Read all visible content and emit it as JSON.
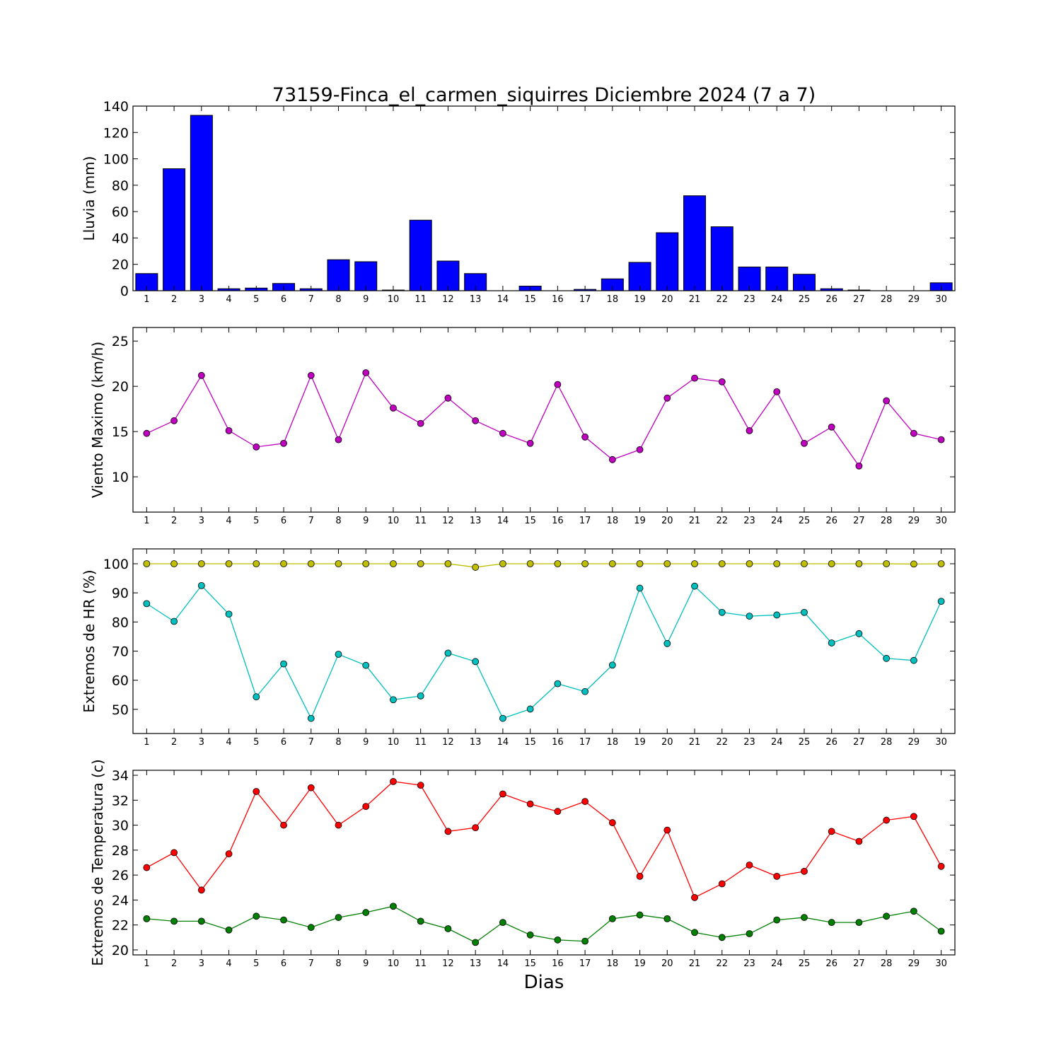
{
  "title": "73159-Finca_el_carmen_siquirres Diciembre 2024  (7 a 7)",
  "xlabel": "Dias",
  "chart_data": [
    {
      "type": "bar",
      "ylabel": "Lluvia (mm)",
      "ylim": [
        0,
        140
      ],
      "yticks": [
        0,
        20,
        40,
        60,
        80,
        100,
        120,
        140
      ],
      "categories": [
        1,
        2,
        3,
        4,
        5,
        6,
        7,
        8,
        9,
        10,
        11,
        12,
        13,
        14,
        15,
        16,
        17,
        18,
        19,
        20,
        21,
        22,
        23,
        24,
        25,
        26,
        27,
        28,
        29,
        30
      ],
      "series": [
        {
          "color": "#0000ff",
          "values": [
            13.0,
            92.5,
            133.0,
            1.5,
            2.0,
            5.5,
            1.5,
            23.5,
            22.0,
            0.5,
            53.5,
            22.5,
            13.0,
            0.0,
            3.5,
            0.0,
            1.0,
            9.0,
            21.5,
            44.0,
            72.0,
            48.5,
            18.0,
            18.0,
            12.5,
            1.5,
            0.5,
            0.0,
            0.0,
            6.0
          ]
        }
      ]
    },
    {
      "type": "line",
      "ylabel": "Viento Maximo (km/h)",
      "ylim": [
        6.1,
        26.5
      ],
      "yticks": [
        10,
        15,
        20,
        25
      ],
      "categories": [
        1,
        2,
        3,
        4,
        5,
        6,
        7,
        8,
        9,
        10,
        11,
        12,
        13,
        14,
        15,
        16,
        17,
        18,
        19,
        20,
        21,
        22,
        23,
        24,
        25,
        26,
        27,
        28,
        29,
        30
      ],
      "series": [
        {
          "color": "#bf00bf",
          "values": [
            14.8,
            16.2,
            21.2,
            15.1,
            13.3,
            13.7,
            21.2,
            14.1,
            21.5,
            17.6,
            15.9,
            18.7,
            16.2,
            14.8,
            13.7,
            20.2,
            14.4,
            11.9,
            13.0,
            18.7,
            20.9,
            20.5,
            15.1,
            19.4,
            13.7,
            15.5,
            11.2,
            18.4,
            14.8,
            14.1
          ]
        }
      ]
    },
    {
      "type": "line",
      "ylabel": "Extremos de HR (%)",
      "ylim": [
        41.7,
        105.1
      ],
      "yticks": [
        50,
        60,
        70,
        80,
        90,
        100
      ],
      "categories": [
        1,
        2,
        3,
        4,
        5,
        6,
        7,
        8,
        9,
        10,
        11,
        12,
        13,
        14,
        15,
        16,
        17,
        18,
        19,
        20,
        21,
        22,
        23,
        24,
        25,
        26,
        27,
        28,
        29,
        30
      ],
      "series": [
        {
          "color": "#bfbf00",
          "values": [
            100,
            100,
            100,
            100,
            100,
            100,
            100,
            100,
            100,
            100,
            100,
            100,
            98.8,
            100,
            100,
            100,
            100,
            100,
            100,
            100,
            100,
            100,
            100,
            100,
            100,
            100,
            100,
            100,
            99.9,
            100
          ]
        },
        {
          "color": "#00bfbf",
          "values": [
            86.3,
            80.2,
            92.5,
            82.7,
            54.3,
            65.6,
            46.9,
            68.9,
            65.1,
            53.3,
            54.6,
            69.3,
            66.4,
            46.9,
            50.1,
            58.8,
            56.1,
            65.2,
            91.6,
            72.6,
            92.3,
            83.3,
            82.0,
            82.4,
            83.3,
            72.8,
            76.0,
            67.5,
            66.8,
            87.1
          ]
        }
      ]
    },
    {
      "type": "line",
      "ylabel": "Extremos de Temperatura (c)",
      "ylim": [
        19.6,
        34.4
      ],
      "yticks": [
        20,
        22,
        24,
        26,
        28,
        30,
        32,
        34
      ],
      "categories": [
        1,
        2,
        3,
        4,
        5,
        6,
        7,
        8,
        9,
        10,
        11,
        12,
        13,
        14,
        15,
        16,
        17,
        18,
        19,
        20,
        21,
        22,
        23,
        24,
        25,
        26,
        27,
        28,
        29,
        30
      ],
      "series": [
        {
          "color": "#ff0000",
          "values": [
            26.6,
            27.8,
            24.8,
            27.7,
            32.7,
            30.0,
            33.0,
            30.0,
            31.5,
            33.5,
            33.2,
            29.5,
            29.8,
            32.5,
            31.7,
            31.1,
            31.9,
            30.2,
            25.9,
            29.6,
            24.2,
            25.3,
            26.8,
            25.9,
            26.3,
            29.5,
            28.7,
            30.4,
            30.7,
            26.7
          ]
        },
        {
          "color": "#008000",
          "values": [
            22.5,
            22.3,
            22.3,
            21.6,
            22.7,
            22.4,
            21.8,
            22.6,
            23.0,
            23.5,
            22.3,
            21.7,
            20.6,
            22.2,
            21.2,
            20.8,
            20.7,
            22.5,
            22.8,
            22.5,
            21.4,
            21.0,
            21.3,
            22.4,
            22.6,
            22.2,
            22.2,
            22.7,
            23.1,
            21.5
          ]
        }
      ]
    }
  ]
}
